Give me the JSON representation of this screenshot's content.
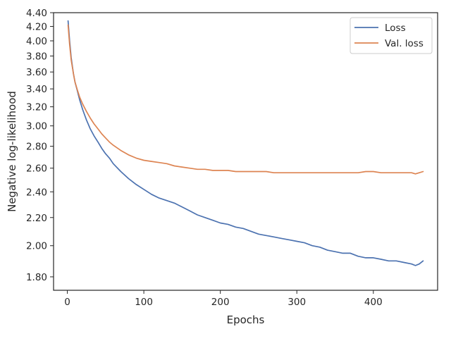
{
  "chart_data": {
    "type": "line",
    "title": "",
    "xlabel": "Epochs",
    "ylabel": "Negative log-likelihood",
    "x_scale": "linear",
    "y_scale": "log",
    "xlim": [
      -18,
      484
    ],
    "ylim": [
      1.72,
      4.4
    ],
    "x_ticks": [
      0,
      100,
      200,
      300,
      400
    ],
    "x_tick_labels": [
      "0",
      "100",
      "200",
      "300",
      "400"
    ],
    "y_ticks": [
      1.8,
      2.0,
      2.2,
      2.4,
      2.6,
      2.8,
      3.0,
      3.2,
      3.4,
      3.6,
      3.8,
      4.0,
      4.2,
      4.4
    ],
    "y_tick_labels": [
      "1.80",
      "2.00",
      "2.20",
      "2.40",
      "2.60",
      "2.80",
      "3.00",
      "3.20",
      "3.40",
      "3.60",
      "3.80",
      "4.00",
      "4.20",
      "4.40"
    ],
    "grid": false,
    "legend_position": "top-right",
    "series": [
      {
        "name": "Loss",
        "color": "#4c72b0",
        "x": [
          1,
          3,
          5,
          8,
          10,
          13,
          16,
          20,
          25,
          30,
          35,
          40,
          45,
          50,
          55,
          60,
          70,
          80,
          90,
          100,
          110,
          120,
          130,
          140,
          150,
          160,
          170,
          180,
          190,
          200,
          210,
          220,
          230,
          240,
          250,
          260,
          270,
          280,
          290,
          300,
          310,
          320,
          330,
          340,
          350,
          360,
          370,
          380,
          390,
          400,
          410,
          420,
          430,
          440,
          450,
          455,
          460,
          465
        ],
        "y": [
          4.28,
          4.0,
          3.78,
          3.58,
          3.48,
          3.38,
          3.28,
          3.17,
          3.06,
          2.97,
          2.9,
          2.84,
          2.78,
          2.73,
          2.69,
          2.64,
          2.57,
          2.51,
          2.46,
          2.42,
          2.38,
          2.35,
          2.33,
          2.31,
          2.28,
          2.25,
          2.22,
          2.2,
          2.18,
          2.16,
          2.15,
          2.13,
          2.12,
          2.1,
          2.08,
          2.07,
          2.06,
          2.05,
          2.04,
          2.03,
          2.02,
          2.0,
          1.99,
          1.97,
          1.96,
          1.95,
          1.95,
          1.93,
          1.92,
          1.92,
          1.91,
          1.9,
          1.9,
          1.89,
          1.88,
          1.87,
          1.88,
          1.9
        ]
      },
      {
        "name": "Val. loss",
        "color": "#dd8452",
        "x": [
          1,
          3,
          5,
          8,
          10,
          13,
          16,
          20,
          25,
          30,
          35,
          40,
          45,
          50,
          55,
          60,
          70,
          80,
          90,
          100,
          110,
          120,
          130,
          140,
          150,
          160,
          170,
          180,
          190,
          200,
          210,
          220,
          230,
          240,
          250,
          260,
          270,
          280,
          290,
          300,
          310,
          320,
          330,
          340,
          350,
          360,
          370,
          380,
          390,
          400,
          410,
          420,
          430,
          440,
          450,
          455,
          460,
          465
        ],
        "y": [
          4.22,
          3.95,
          3.75,
          3.58,
          3.48,
          3.39,
          3.31,
          3.23,
          3.15,
          3.08,
          3.02,
          2.97,
          2.92,
          2.88,
          2.84,
          2.81,
          2.76,
          2.72,
          2.69,
          2.67,
          2.66,
          2.65,
          2.64,
          2.62,
          2.61,
          2.6,
          2.59,
          2.59,
          2.58,
          2.58,
          2.58,
          2.57,
          2.57,
          2.57,
          2.57,
          2.57,
          2.56,
          2.56,
          2.56,
          2.56,
          2.56,
          2.56,
          2.56,
          2.56,
          2.56,
          2.56,
          2.56,
          2.56,
          2.57,
          2.57,
          2.56,
          2.56,
          2.56,
          2.56,
          2.56,
          2.55,
          2.56,
          2.57
        ]
      }
    ]
  }
}
